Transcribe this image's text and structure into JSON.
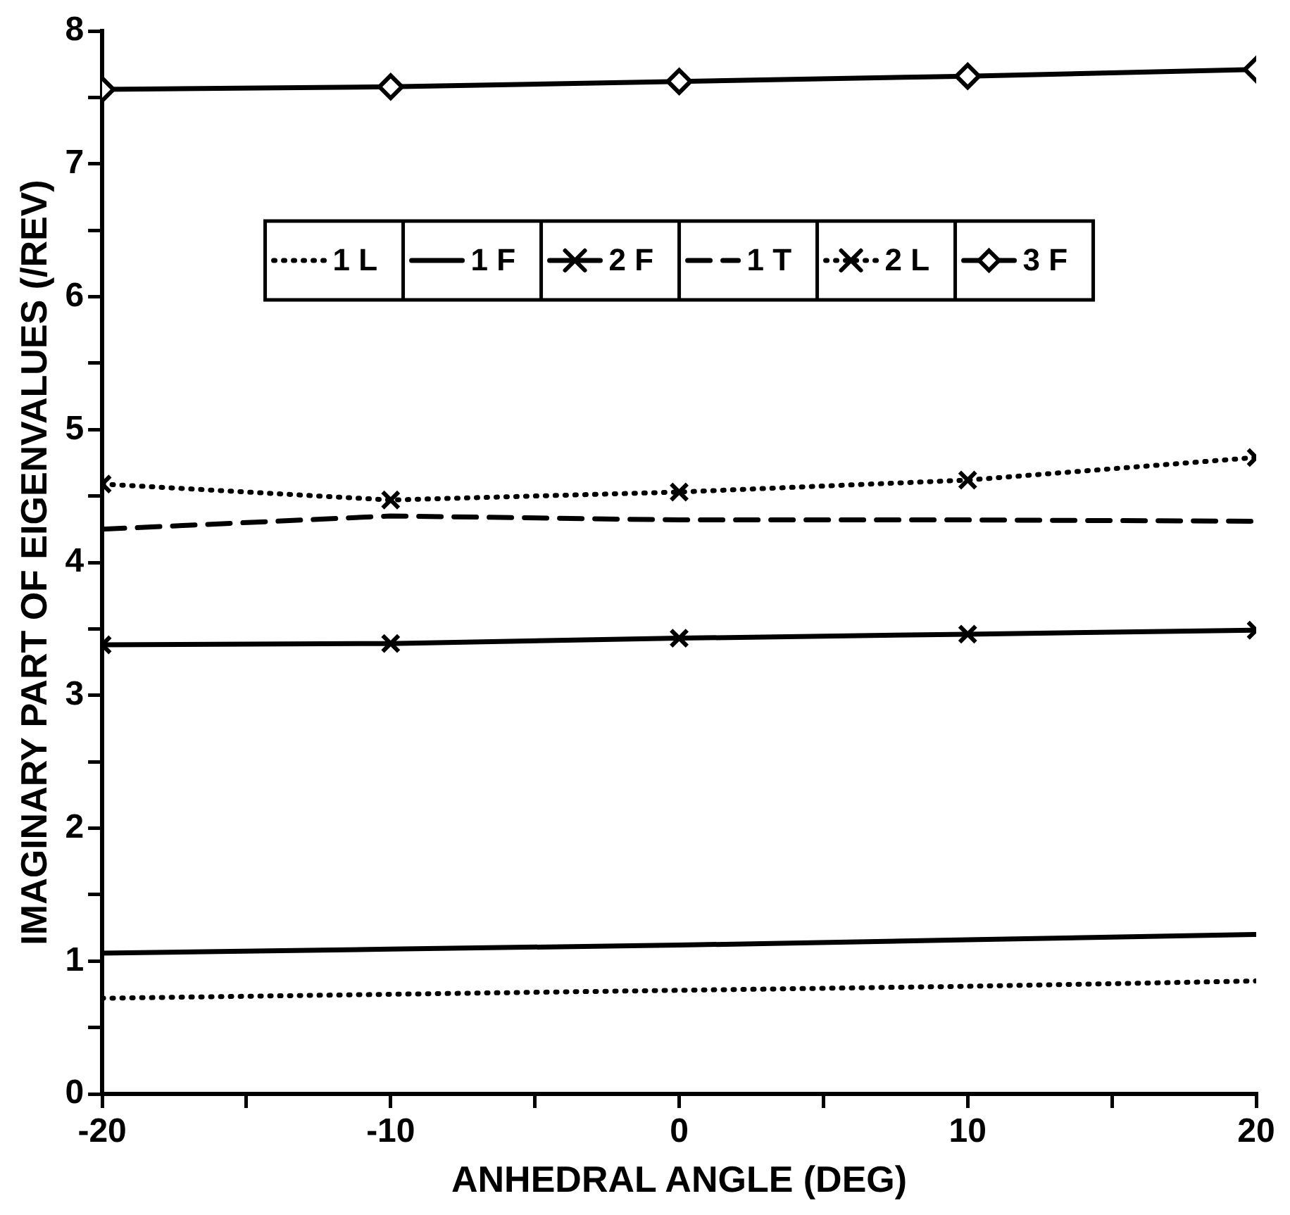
{
  "chart_data": {
    "type": "line",
    "xlabel": "ANHEDRAL ANGLE (DEG)",
    "ylabel": "IMAGINARY PART OF EIGENVALUES (/REV)",
    "x": [
      -20,
      -10,
      0,
      10,
      20
    ],
    "series": [
      {
        "name": "1 L",
        "color": "#000000",
        "line_style": "dotted",
        "marker": "none",
        "values": [
          0.72,
          0.75,
          0.78,
          0.81,
          0.85
        ]
      },
      {
        "name": "1 F",
        "color": "#000000",
        "line_style": "solid",
        "marker": "none",
        "values": [
          1.06,
          1.09,
          1.12,
          1.16,
          1.2
        ]
      },
      {
        "name": "2 F",
        "color": "#000000",
        "line_style": "solid",
        "marker": "cross",
        "values": [
          3.38,
          3.39,
          3.43,
          3.46,
          3.49
        ]
      },
      {
        "name": "1 T",
        "color": "#000000",
        "line_style": "dashed",
        "marker": "none",
        "values": [
          4.25,
          4.35,
          4.32,
          4.32,
          4.31
        ]
      },
      {
        "name": "2 L",
        "color": "#000000",
        "line_style": "dotted",
        "marker": "cross",
        "values": [
          4.59,
          4.47,
          4.53,
          4.62,
          4.79
        ]
      },
      {
        "name": "3 F",
        "color": "#000000",
        "line_style": "solid",
        "marker": "diamond",
        "values": [
          7.56,
          7.58,
          7.62,
          7.66,
          7.71
        ]
      }
    ],
    "xlim": [
      -20,
      20
    ],
    "xticks": [
      -20,
      {
        "value": -15,
        "label": null
      },
      -10,
      {
        "value": -5,
        "label": null
      },
      0,
      {
        "value": 5,
        "label": null
      },
      10,
      {
        "value": 15,
        "label": null
      },
      20
    ],
    "ylim": [
      0,
      8
    ],
    "yticks": [
      0,
      {
        "value": 0.5,
        "label": null
      },
      1,
      {
        "value": 1.5,
        "label": null
      },
      2,
      {
        "value": 2.5,
        "label": null
      },
      3,
      {
        "value": 3.5,
        "label": null
      },
      4,
      {
        "value": 4.5,
        "label": null
      },
      5,
      {
        "value": 5.5,
        "label": null
      },
      6,
      {
        "value": 6.5,
        "label": null
      },
      7,
      {
        "value": 7.5,
        "label": null
      },
      8
    ],
    "grid": false,
    "legend": "top"
  }
}
